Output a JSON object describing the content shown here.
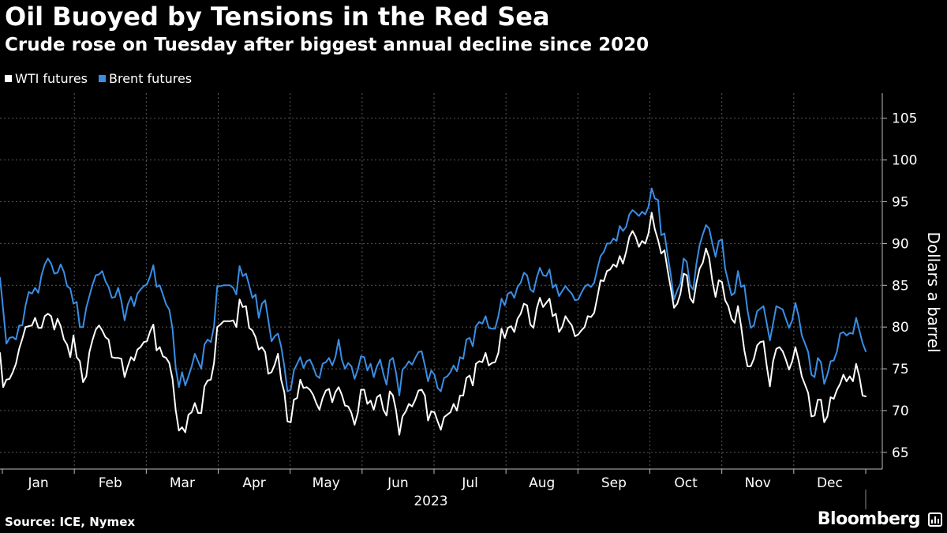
{
  "chart_data": {
    "type": "line",
    "title": "Oil Buoyed by Tensions in the Red Sea",
    "subtitle": "Crude rose on Tuesday after biggest annual decline since 2020",
    "ylabel": "Dollars a barrel",
    "xlabel": "2023",
    "ylim": [
      63,
      108
    ],
    "y_ticks": [
      65,
      70,
      75,
      80,
      85,
      90,
      95,
      100,
      105
    ],
    "months": [
      "Jan",
      "Feb",
      "Mar",
      "Apr",
      "May",
      "Jun",
      "Jul",
      "Aug",
      "Sep",
      "Oct",
      "Nov",
      "Dec"
    ],
    "grid": true,
    "legend_position": "top-left",
    "source": "Source: ICE, Nymex",
    "brand": "Bloomberg",
    "series": [
      {
        "name": "WTI futures",
        "color": "#ffffff",
        "values": [
          76.9,
          72.8,
          73.7,
          73.8,
          74.6,
          75.6,
          77.4,
          78.6,
          80.0,
          80.1,
          80.2,
          81.1,
          79.9,
          79.9,
          81.3,
          81.6,
          81.3,
          79.7,
          81.0,
          80.1,
          78.5,
          77.9,
          76.4,
          79.0,
          76.4,
          75.9,
          73.4,
          74.1,
          77.0,
          78.5,
          79.7,
          80.2,
          79.6,
          78.8,
          78.5,
          76.4,
          76.3,
          76.3,
          76.2,
          74.0,
          75.3,
          76.4,
          76.0,
          77.3,
          77.6,
          78.2,
          78.3,
          79.5,
          80.3,
          77.2,
          77.6,
          76.5,
          76.3,
          75.7,
          73.8,
          70.1,
          67.6,
          68.0,
          67.4,
          69.5,
          69.8,
          70.9,
          69.7,
          69.7,
          72.9,
          73.6,
          73.7,
          75.7,
          80.0,
          80.3,
          80.7,
          80.7,
          80.7,
          80.8,
          80.0,
          83.3,
          82.4,
          82.5,
          79.9,
          79.6,
          78.8,
          77.3,
          77.6,
          77.0,
          74.4,
          74.6,
          75.5,
          76.8,
          73.7,
          72.2,
          68.7,
          68.6,
          71.3,
          71.5,
          73.7,
          72.7,
          72.8,
          72.5,
          71.9,
          70.9,
          70.1,
          71.5,
          72.4,
          72.6,
          71.0,
          72.2,
          72.8,
          71.9,
          70.6,
          70.5,
          69.7,
          68.3,
          69.7,
          72.5,
          72.5,
          70.8,
          71.2,
          70.1,
          71.6,
          71.9,
          70.1,
          69.4,
          72.3,
          71.8,
          70.0,
          67.1,
          69.3,
          69.9,
          70.8,
          70.5,
          71.3,
          72.4,
          72.5,
          71.8,
          68.8,
          69.9,
          69.8,
          68.7,
          67.7,
          69.2,
          69.5,
          69.8,
          70.8,
          70.0,
          71.8,
          71.8,
          73.9,
          74.2,
          73.0,
          75.6,
          75.9,
          75.8,
          76.9,
          75.4,
          75.7,
          75.8,
          76.9,
          79.8,
          78.7,
          79.9,
          80.1,
          79.4,
          81.0,
          81.6,
          82.8,
          82.6,
          80.3,
          79.9,
          82.2,
          83.5,
          82.4,
          82.9,
          83.4,
          81.3,
          81.6,
          79.4,
          80.0,
          81.3,
          80.7,
          80.2,
          78.9,
          79.1,
          79.6,
          80.0,
          81.3,
          81.2,
          81.7,
          83.6,
          85.6,
          85.5,
          86.7,
          86.9,
          87.5,
          87.2,
          88.5,
          87.6,
          89.0,
          90.8,
          91.5,
          90.8,
          89.6,
          90.3,
          90.0,
          91.2,
          93.7,
          91.7,
          90.4,
          88.8,
          89.2,
          86.8,
          84.6,
          82.3,
          82.8,
          84.0,
          86.4,
          86.2,
          83.5,
          82.9,
          85.3,
          87.0,
          87.7,
          89.4,
          88.3,
          85.5,
          83.6,
          85.6,
          85.4,
          83.2,
          82.5,
          81.0,
          80.5,
          82.5,
          80.1,
          77.2,
          75.3,
          75.3,
          76.2,
          77.8,
          78.2,
          78.3,
          75.4,
          72.9,
          75.9,
          77.4,
          77.6,
          77.1,
          76.1,
          74.9,
          75.9,
          77.6,
          76.0,
          74.1,
          73.1,
          72.1,
          69.3,
          69.4,
          71.3,
          71.3,
          68.6,
          69.3,
          71.6,
          71.4,
          72.5,
          73.2,
          74.3,
          73.5,
          74.1,
          73.5,
          75.6,
          74.1,
          71.8,
          71.7
        ]
      },
      {
        "name": "Brent futures",
        "color": "#3a8ee6",
        "values": [
          85.9,
          82.1,
          78.0,
          78.7,
          78.8,
          78.5,
          80.2,
          80.2,
          82.6,
          84.2,
          84.0,
          84.7,
          84.1,
          86.2,
          87.5,
          88.2,
          87.6,
          86.4,
          86.5,
          87.5,
          86.6,
          84.9,
          84.6,
          82.8,
          83.0,
          80.0,
          80.0,
          82.3,
          83.7,
          85.1,
          86.2,
          86.3,
          86.7,
          85.5,
          84.8,
          83.5,
          83.6,
          84.7,
          83.1,
          80.8,
          82.7,
          83.6,
          82.5,
          84.0,
          84.5,
          84.9,
          85.1,
          86.1,
          87.4,
          84.8,
          85.0,
          83.9,
          82.7,
          82.1,
          79.8,
          75.2,
          72.8,
          74.6,
          73.0,
          74.1,
          75.3,
          76.8,
          75.9,
          75.0,
          77.9,
          78.5,
          78.2,
          80.1,
          84.9,
          84.9,
          85.0,
          85.0,
          85.0,
          84.7,
          83.9,
          87.3,
          86.1,
          86.4,
          85.0,
          83.5,
          83.9,
          81.1,
          82.8,
          83.2,
          80.8,
          78.3,
          78.9,
          79.2,
          77.7,
          75.3,
          72.3,
          72.5,
          74.8,
          75.6,
          76.4,
          75.1,
          75.9,
          76.1,
          75.3,
          74.2,
          73.9,
          75.6,
          75.8,
          76.3,
          75.4,
          76.4,
          78.5,
          76.1,
          75.0,
          75.7,
          75.3,
          73.8,
          74.9,
          76.5,
          76.4,
          74.8,
          75.6,
          74.0,
          75.3,
          76.1,
          74.4,
          73.1,
          76.0,
          76.3,
          74.5,
          71.8,
          74.9,
          75.3,
          75.9,
          75.5,
          76.3,
          77.0,
          77.1,
          75.4,
          73.5,
          74.8,
          74.3,
          72.7,
          72.3,
          73.9,
          74.1,
          74.6,
          75.4,
          74.7,
          76.4,
          76.2,
          78.5,
          78.7,
          77.7,
          80.1,
          80.6,
          80.4,
          81.3,
          79.9,
          79.8,
          79.8,
          81.3,
          83.4,
          82.6,
          84.0,
          84.2,
          83.5,
          84.8,
          85.3,
          86.5,
          86.2,
          84.5,
          84.2,
          85.9,
          87.1,
          86.2,
          86.1,
          86.9,
          84.7,
          85.1,
          83.7,
          84.3,
          84.9,
          84.4,
          84.0,
          83.2,
          83.3,
          84.1,
          84.8,
          85.1,
          84.8,
          85.3,
          87.0,
          88.5,
          89.0,
          90.0,
          90.0,
          90.6,
          90.3,
          92.1,
          91.5,
          92.0,
          93.5,
          94.0,
          93.7,
          93.3,
          93.8,
          93.5,
          94.4,
          96.6,
          95.4,
          95.2,
          91.0,
          91.2,
          88.6,
          86.2,
          83.3,
          84.4,
          85.2,
          88.2,
          87.8,
          85.0,
          84.5,
          87.6,
          89.8,
          91.1,
          92.2,
          91.8,
          90.0,
          88.4,
          90.3,
          90.5,
          87.0,
          85.4,
          83.8,
          84.1,
          86.7,
          84.8,
          85.0,
          82.0,
          79.9,
          80.2,
          81.9,
          82.2,
          82.5,
          80.5,
          78.4,
          80.4,
          82.5,
          82.3,
          82.1,
          81.0,
          79.9,
          80.8,
          82.9,
          81.3,
          79.0,
          78.0,
          77.0,
          74.3,
          74.0,
          76.3,
          75.8,
          73.2,
          74.3,
          75.9,
          76.0,
          77.1,
          79.2,
          79.4,
          79.0,
          79.3,
          79.2,
          81.1,
          79.6,
          78.1,
          77.1
        ]
      }
    ]
  }
}
